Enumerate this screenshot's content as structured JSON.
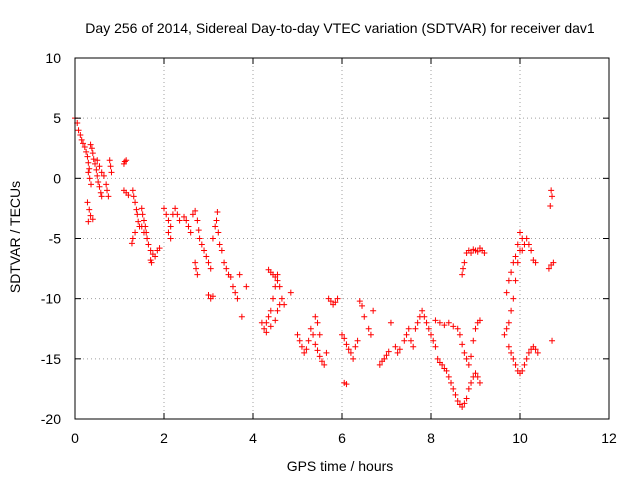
{
  "chart_data": {
    "type": "scatter",
    "title": "Day 256 of 2014, Sidereal Day-to-day VTEC variation (SDTVAR) for receiver dav1",
    "xlabel": "GPS time / hours",
    "ylabel": "SDTVAR / TECUs",
    "xlim": [
      0,
      12
    ],
    "ylim": [
      -20,
      10
    ],
    "xticks": [
      0,
      2,
      4,
      6,
      8,
      10,
      12
    ],
    "yticks": [
      -20,
      -15,
      -10,
      -5,
      0,
      5,
      10
    ],
    "grid": true,
    "marker": "+",
    "color": "#ff0000",
    "series": [
      {
        "name": "dav1",
        "points": [
          [
            0.0,
            5.0
          ],
          [
            0.05,
            4.6
          ],
          [
            0.08,
            4.0
          ],
          [
            0.12,
            3.6
          ],
          [
            0.15,
            3.2
          ],
          [
            0.18,
            2.9
          ],
          [
            0.22,
            2.6
          ],
          [
            0.25,
            2.2
          ],
          [
            0.28,
            1.8
          ],
          [
            0.3,
            1.3
          ],
          [
            0.32,
            0.8
          ],
          [
            0.35,
            2.8
          ],
          [
            0.38,
            2.5
          ],
          [
            0.4,
            2.1
          ],
          [
            0.42,
            1.6
          ],
          [
            0.45,
            1.2
          ],
          [
            0.48,
            0.7
          ],
          [
            0.5,
            0.2
          ],
          [
            0.52,
            -0.3
          ],
          [
            0.55,
            -0.7
          ],
          [
            0.58,
            -1.2
          ],
          [
            0.6,
            -1.5
          ],
          [
            0.3,
            0.5
          ],
          [
            0.33,
            0.0
          ],
          [
            0.36,
            -0.5
          ],
          [
            0.28,
            -2.0
          ],
          [
            0.32,
            -2.6
          ],
          [
            0.35,
            -3.1
          ],
          [
            0.4,
            -3.4
          ],
          [
            0.3,
            -3.6
          ],
          [
            0.5,
            1.5
          ],
          [
            0.55,
            1.0
          ],
          [
            0.6,
            0.5
          ],
          [
            0.65,
            0.2
          ],
          [
            0.7,
            -0.5
          ],
          [
            0.72,
            -1.0
          ],
          [
            0.75,
            -1.5
          ],
          [
            0.78,
            1.5
          ],
          [
            0.8,
            1.0
          ],
          [
            0.82,
            0.5
          ],
          [
            1.1,
            1.2
          ],
          [
            1.12,
            1.4
          ],
          [
            1.15,
            1.5
          ],
          [
            1.1,
            -1.0
          ],
          [
            1.15,
            -1.2
          ],
          [
            1.2,
            -1.4
          ],
          [
            1.3,
            -1.0
          ],
          [
            1.32,
            -1.5
          ],
          [
            1.35,
            -2.0
          ],
          [
            1.38,
            -2.6
          ],
          [
            1.4,
            -3.0
          ],
          [
            1.42,
            -3.6
          ],
          [
            1.45,
            -4.0
          ],
          [
            1.35,
            -4.5
          ],
          [
            1.3,
            -5.0
          ],
          [
            1.28,
            -5.4
          ],
          [
            1.5,
            -2.5
          ],
          [
            1.52,
            -3.0
          ],
          [
            1.55,
            -3.5
          ],
          [
            1.58,
            -4.0
          ],
          [
            1.6,
            -4.5
          ],
          [
            1.62,
            -5.0
          ],
          [
            1.5,
            -4.0
          ],
          [
            1.55,
            -4.5
          ],
          [
            1.65,
            -5.5
          ],
          [
            1.7,
            -6.0
          ],
          [
            1.75,
            -6.3
          ],
          [
            1.8,
            -6.5
          ],
          [
            1.85,
            -6.0
          ],
          [
            1.9,
            -5.8
          ],
          [
            1.7,
            -6.8
          ],
          [
            1.72,
            -7.0
          ],
          [
            2.0,
            -2.5
          ],
          [
            2.05,
            -3.0
          ],
          [
            2.1,
            -3.5
          ],
          [
            2.15,
            -4.0
          ],
          [
            2.2,
            -3.0
          ],
          [
            2.25,
            -2.5
          ],
          [
            2.3,
            -3.0
          ],
          [
            2.35,
            -3.5
          ],
          [
            2.1,
            -4.5
          ],
          [
            2.15,
            -5.0
          ],
          [
            2.45,
            -3.2
          ],
          [
            2.5,
            -3.5
          ],
          [
            2.55,
            -4.0
          ],
          [
            2.6,
            -4.5
          ],
          [
            2.65,
            -3.0
          ],
          [
            2.7,
            -2.7
          ],
          [
            2.75,
            -3.5
          ],
          [
            2.78,
            -4.3
          ],
          [
            2.7,
            -7.0
          ],
          [
            2.72,
            -7.5
          ],
          [
            2.75,
            -8.0
          ],
          [
            2.8,
            -5.0
          ],
          [
            2.85,
            -5.5
          ],
          [
            2.9,
            -6.0
          ],
          [
            2.95,
            -6.5
          ],
          [
            3.0,
            -7.0
          ],
          [
            3.05,
            -7.5
          ],
          [
            3.0,
            -9.7
          ],
          [
            3.05,
            -10.0
          ],
          [
            3.1,
            -9.8
          ],
          [
            3.1,
            -5.0
          ],
          [
            3.15,
            -4.0
          ],
          [
            3.18,
            -3.5
          ],
          [
            3.2,
            -2.8
          ],
          [
            3.22,
            -4.5
          ],
          [
            3.25,
            -5.5
          ],
          [
            3.3,
            -6.0
          ],
          [
            3.35,
            -7.0
          ],
          [
            3.4,
            -7.5
          ],
          [
            3.45,
            -8.0
          ],
          [
            3.5,
            -8.2
          ],
          [
            3.55,
            -9.0
          ],
          [
            3.6,
            -9.5
          ],
          [
            3.65,
            -10.0
          ],
          [
            3.7,
            -8.0
          ],
          [
            3.75,
            -11.5
          ],
          [
            3.85,
            -9.0
          ],
          [
            4.2,
            -12.0
          ],
          [
            4.25,
            -12.5
          ],
          [
            4.3,
            -12.0
          ],
          [
            4.35,
            -11.5
          ],
          [
            4.4,
            -11.0
          ],
          [
            4.45,
            -10.0
          ],
          [
            4.5,
            -9.0
          ],
          [
            4.55,
            -8.0
          ],
          [
            4.35,
            -7.6
          ],
          [
            4.4,
            -7.8
          ],
          [
            4.45,
            -8.0
          ],
          [
            4.5,
            -8.2
          ],
          [
            4.55,
            -8.5
          ],
          [
            4.6,
            -9.0
          ],
          [
            4.3,
            -12.8
          ],
          [
            4.4,
            -12.3
          ],
          [
            4.5,
            -11.8
          ],
          [
            4.55,
            -11.0
          ],
          [
            4.6,
            -10.5
          ],
          [
            4.65,
            -10.0
          ],
          [
            4.7,
            -10.5
          ],
          [
            4.85,
            -9.5
          ],
          [
            5.0,
            -13.0
          ],
          [
            5.05,
            -13.5
          ],
          [
            5.1,
            -14.0
          ],
          [
            5.15,
            -14.5
          ],
          [
            5.2,
            -14.2
          ],
          [
            5.25,
            -13.5
          ],
          [
            5.3,
            -12.5
          ],
          [
            5.35,
            -13.0
          ],
          [
            5.4,
            -13.8
          ],
          [
            5.45,
            -14.3
          ],
          [
            5.5,
            -14.8
          ],
          [
            5.55,
            -15.2
          ],
          [
            5.6,
            -15.5
          ],
          [
            5.65,
            -14.5
          ],
          [
            5.4,
            -11.5
          ],
          [
            5.45,
            -12.0
          ],
          [
            5.5,
            -13.0
          ],
          [
            5.7,
            -10.0
          ],
          [
            5.75,
            -10.2
          ],
          [
            5.8,
            -10.5
          ],
          [
            5.85,
            -10.3
          ],
          [
            5.9,
            -10.0
          ],
          [
            6.0,
            -13.0
          ],
          [
            6.05,
            -13.3
          ],
          [
            6.1,
            -13.8
          ],
          [
            6.15,
            -14.2
          ],
          [
            6.2,
            -14.5
          ],
          [
            6.25,
            -15.0
          ],
          [
            6.3,
            -14.0
          ],
          [
            6.35,
            -13.5
          ],
          [
            6.05,
            -17.0
          ],
          [
            6.1,
            -17.1
          ],
          [
            6.4,
            -10.2
          ],
          [
            6.45,
            -10.6
          ],
          [
            6.5,
            -11.5
          ],
          [
            6.6,
            -12.5
          ],
          [
            6.65,
            -13.0
          ],
          [
            6.7,
            -11.0
          ],
          [
            6.85,
            -15.5
          ],
          [
            6.9,
            -15.2
          ],
          [
            6.95,
            -15.0
          ],
          [
            7.0,
            -14.7
          ],
          [
            7.05,
            -14.4
          ],
          [
            7.1,
            -12.0
          ],
          [
            7.2,
            -14.0
          ],
          [
            7.25,
            -14.5
          ],
          [
            7.3,
            -14.2
          ],
          [
            7.4,
            -13.5
          ],
          [
            7.45,
            -13.0
          ],
          [
            7.5,
            -12.5
          ],
          [
            7.55,
            -13.5
          ],
          [
            7.6,
            -14.0
          ],
          [
            7.65,
            -12.5
          ],
          [
            7.7,
            -12.0
          ],
          [
            7.75,
            -11.5
          ],
          [
            7.8,
            -11.0
          ],
          [
            7.85,
            -11.5
          ],
          [
            7.9,
            -12.0
          ],
          [
            7.95,
            -12.5
          ],
          [
            8.0,
            -13.0
          ],
          [
            8.05,
            -13.5
          ],
          [
            8.1,
            -14.0
          ],
          [
            8.15,
            -15.0
          ],
          [
            8.2,
            -15.3
          ],
          [
            8.25,
            -15.5
          ],
          [
            8.3,
            -15.8
          ],
          [
            8.35,
            -16.0
          ],
          [
            8.4,
            -16.5
          ],
          [
            8.45,
            -17.0
          ],
          [
            8.5,
            -17.5
          ],
          [
            8.55,
            -18.0
          ],
          [
            8.6,
            -18.5
          ],
          [
            8.65,
            -18.8
          ],
          [
            8.7,
            -19.0
          ],
          [
            8.75,
            -18.7
          ],
          [
            8.8,
            -18.3
          ],
          [
            8.85,
            -17.5
          ],
          [
            8.9,
            -17.0
          ],
          [
            8.95,
            -16.5
          ],
          [
            9.0,
            -16.2
          ],
          [
            9.05,
            -16.5
          ],
          [
            9.1,
            -17.0
          ],
          [
            8.1,
            -11.8
          ],
          [
            8.2,
            -12.0
          ],
          [
            8.3,
            -12.2
          ],
          [
            8.4,
            -12.0
          ],
          [
            8.5,
            -12.3
          ],
          [
            8.6,
            -12.5
          ],
          [
            8.65,
            -13.0
          ],
          [
            8.7,
            -13.8
          ],
          [
            8.75,
            -14.5
          ],
          [
            8.8,
            -15.0
          ],
          [
            8.85,
            -15.5
          ],
          [
            8.9,
            -14.8
          ],
          [
            8.95,
            -13.5
          ],
          [
            9.0,
            -12.5
          ],
          [
            9.05,
            -12.0
          ],
          [
            9.1,
            -11.8
          ],
          [
            8.7,
            -8.0
          ],
          [
            8.72,
            -7.5
          ],
          [
            8.75,
            -7.0
          ],
          [
            8.8,
            -6.2
          ],
          [
            8.85,
            -6.0
          ],
          [
            8.9,
            -6.2
          ],
          [
            8.95,
            -5.9
          ],
          [
            9.0,
            -6.0
          ],
          [
            9.05,
            -6.1
          ],
          [
            9.1,
            -5.8
          ],
          [
            9.15,
            -6.0
          ],
          [
            9.2,
            -6.2
          ],
          [
            9.65,
            -13.0
          ],
          [
            9.7,
            -12.5
          ],
          [
            9.75,
            -12.0
          ],
          [
            9.8,
            -11.0
          ],
          [
            9.85,
            -10.0
          ],
          [
            9.9,
            -8.5
          ],
          [
            9.95,
            -7.0
          ],
          [
            10.0,
            -6.0
          ],
          [
            10.05,
            -5.0
          ],
          [
            9.7,
            -9.5
          ],
          [
            9.75,
            -8.5
          ],
          [
            9.8,
            -7.8
          ],
          [
            9.85,
            -7.0
          ],
          [
            9.9,
            -6.5
          ],
          [
            9.95,
            -5.5
          ],
          [
            10.0,
            -4.5
          ],
          [
            9.75,
            -14.0
          ],
          [
            9.8,
            -14.5
          ],
          [
            9.85,
            -15.0
          ],
          [
            9.9,
            -15.5
          ],
          [
            9.95,
            -16.0
          ],
          [
            10.0,
            -16.2
          ],
          [
            10.05,
            -16.0
          ],
          [
            10.1,
            -15.5
          ],
          [
            10.15,
            -15.0
          ],
          [
            10.2,
            -14.5
          ],
          [
            10.25,
            -14.2
          ],
          [
            10.3,
            -14.0
          ],
          [
            10.35,
            -14.2
          ],
          [
            10.4,
            -14.5
          ],
          [
            10.05,
            -6.0
          ],
          [
            10.1,
            -5.5
          ],
          [
            10.15,
            -5.0
          ],
          [
            10.2,
            -5.5
          ],
          [
            10.25,
            -6.0
          ],
          [
            10.3,
            -6.8
          ],
          [
            10.35,
            -7.0
          ],
          [
            10.65,
            -7.5
          ],
          [
            10.7,
            -7.2
          ],
          [
            10.75,
            -7.0
          ],
          [
            10.7,
            -1.0
          ],
          [
            10.72,
            -1.5
          ],
          [
            10.68,
            -2.3
          ],
          [
            10.72,
            -13.5
          ]
        ]
      }
    ]
  }
}
